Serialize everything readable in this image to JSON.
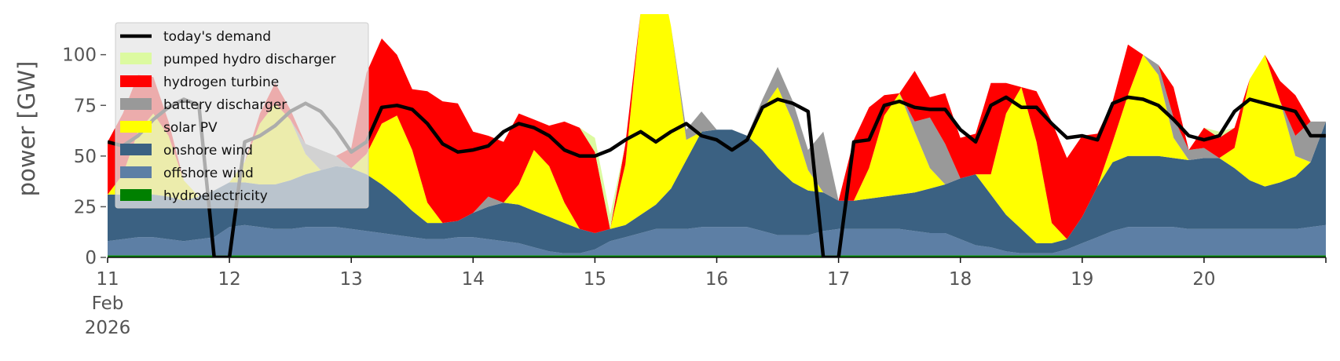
{
  "chart_data": {
    "type": "area",
    "title": "",
    "xlabel": "",
    "ylabel": "power [GW]",
    "x_range": [
      "2026-02-11",
      "2026-02-21"
    ],
    "ylim": [
      0,
      120
    ],
    "yticks": [
      0,
      25,
      50,
      75,
      100
    ],
    "xticks": [
      {
        "date": "2026-02-11",
        "label": "11",
        "sub1": "Feb",
        "sub2": "2026"
      },
      {
        "date": "2026-02-12",
        "label": "12"
      },
      {
        "date": "2026-02-13",
        "label": "13"
      },
      {
        "date": "2026-02-14",
        "label": "14"
      },
      {
        "date": "2026-02-15",
        "label": "15"
      },
      {
        "date": "2026-02-16",
        "label": "16"
      },
      {
        "date": "2026-02-17",
        "label": "17"
      },
      {
        "date": "2026-02-18",
        "label": "18"
      },
      {
        "date": "2026-02-19",
        "label": "19"
      },
      {
        "date": "2026-02-20",
        "label": "20"
      }
    ],
    "grid": false,
    "legend_position": "top-left",
    "x": [
      "2026-02-11 00:00",
      "2026-02-11 03:00",
      "2026-02-11 06:00",
      "2026-02-11 09:00",
      "2026-02-11 12:00",
      "2026-02-11 15:00",
      "2026-02-11 18:00",
      "2026-02-11 21:00",
      "2026-02-12 00:00",
      "2026-02-12 03:00",
      "2026-02-12 06:00",
      "2026-02-12 09:00",
      "2026-02-12 12:00",
      "2026-02-12 15:00",
      "2026-02-12 18:00",
      "2026-02-12 21:00",
      "2026-02-13 00:00",
      "2026-02-13 03:00",
      "2026-02-13 06:00",
      "2026-02-13 09:00",
      "2026-02-13 12:00",
      "2026-02-13 15:00",
      "2026-02-13 18:00",
      "2026-02-13 21:00",
      "2026-02-14 00:00",
      "2026-02-14 03:00",
      "2026-02-14 06:00",
      "2026-02-14 09:00",
      "2026-02-14 12:00",
      "2026-02-14 15:00",
      "2026-02-14 18:00",
      "2026-02-14 21:00",
      "2026-02-15 00:00",
      "2026-02-15 03:00",
      "2026-02-15 06:00",
      "2026-02-15 09:00",
      "2026-02-15 12:00",
      "2026-02-15 15:00",
      "2026-02-15 18:00",
      "2026-02-15 21:00",
      "2026-02-16 00:00",
      "2026-02-16 03:00",
      "2026-02-16 06:00",
      "2026-02-16 09:00",
      "2026-02-16 12:00",
      "2026-02-16 15:00",
      "2026-02-16 18:00",
      "2026-02-16 21:00",
      "2026-02-17 00:00",
      "2026-02-17 03:00",
      "2026-02-17 06:00",
      "2026-02-17 09:00",
      "2026-02-17 12:00",
      "2026-02-17 15:00",
      "2026-02-17 18:00",
      "2026-02-17 21:00",
      "2026-02-18 00:00",
      "2026-02-18 03:00",
      "2026-02-18 06:00",
      "2026-02-18 09:00",
      "2026-02-18 12:00",
      "2026-02-18 15:00",
      "2026-02-18 18:00",
      "2026-02-18 21:00",
      "2026-02-19 00:00",
      "2026-02-19 03:00",
      "2026-02-19 06:00",
      "2026-02-19 09:00",
      "2026-02-19 12:00",
      "2026-02-19 15:00",
      "2026-02-19 18:00",
      "2026-02-19 21:00",
      "2026-02-20 00:00",
      "2026-02-20 03:00",
      "2026-02-20 06:00",
      "2026-02-20 09:00",
      "2026-02-20 12:00",
      "2026-02-20 15:00",
      "2026-02-20 18:00",
      "2026-02-20 21:00",
      "2026-02-21 00:00"
    ],
    "stack_order": [
      "hydroelectricity",
      "offshore wind",
      "onshore wind",
      "solar PV",
      "battery discharger",
      "hydrogen turbine",
      "pumped hydro discharger"
    ],
    "series": [
      {
        "name": "hydroelectricity",
        "color": "#008000",
        "values": [
          1,
          1,
          1,
          1,
          1,
          1,
          1,
          1,
          1,
          1,
          1,
          1,
          1,
          1,
          1,
          1,
          1,
          1,
          1,
          1,
          1,
          1,
          1,
          1,
          1,
          1,
          1,
          1,
          1,
          1,
          1,
          1,
          1,
          1,
          1,
          1,
          1,
          1,
          1,
          1,
          1,
          1,
          1,
          1,
          1,
          1,
          1,
          1,
          1,
          1,
          1,
          1,
          1,
          1,
          1,
          1,
          1,
          1,
          1,
          1,
          1,
          1,
          1,
          1,
          1,
          1,
          1,
          1,
          1,
          1,
          1,
          1,
          1,
          1,
          1,
          1,
          1,
          1,
          1,
          1,
          1
        ]
      },
      {
        "name": "offshore wind",
        "color": "#5d7fa5",
        "values": [
          7,
          8,
          9,
          9,
          8,
          7,
          8,
          9,
          14,
          15,
          14,
          13,
          13,
          14,
          14,
          14,
          13,
          12,
          11,
          10,
          9,
          8,
          8,
          9,
          9,
          8,
          7,
          6,
          4,
          2,
          1,
          1,
          3,
          7,
          9,
          11,
          13,
          13,
          13,
          14,
          14,
          14,
          14,
          12,
          10,
          10,
          10,
          12,
          13,
          13,
          13,
          13,
          13,
          12,
          11,
          11,
          8,
          5,
          4,
          2,
          1,
          1,
          1,
          3,
          6,
          9,
          12,
          14,
          14,
          14,
          14,
          13,
          13,
          13,
          13,
          13,
          13,
          13,
          13,
          14,
          15
        ]
      },
      {
        "name": "onshore wind",
        "color": "#3b6182",
        "values": [
          23,
          22,
          22,
          21,
          21,
          20,
          21,
          23,
          22,
          21,
          21,
          22,
          24,
          26,
          28,
          30,
          30,
          28,
          24,
          19,
          13,
          8,
          8,
          8,
          12,
          16,
          19,
          19,
          18,
          17,
          15,
          12,
          8,
          6,
          6,
          9,
          12,
          20,
          34,
          47,
          48,
          48,
          45,
          40,
          33,
          26,
          22,
          19,
          14,
          14,
          15,
          16,
          17,
          19,
          22,
          24,
          30,
          35,
          26,
          18,
          12,
          5,
          5,
          5,
          13,
          25,
          34,
          35,
          35,
          35,
          34,
          34,
          35,
          35,
          30,
          24,
          21,
          23,
          26,
          32,
          51
        ]
      },
      {
        "name": "solar PV",
        "color": "#ffff00",
        "values": [
          0,
          10,
          30,
          40,
          30,
          10,
          0,
          0,
          0,
          10,
          30,
          40,
          30,
          10,
          0,
          0,
          0,
          10,
          30,
          40,
          30,
          10,
          0,
          0,
          0,
          0,
          0,
          10,
          30,
          25,
          10,
          0,
          0,
          0,
          30,
          100,
          125,
          80,
          10,
          0,
          0,
          0,
          0,
          20,
          40,
          30,
          10,
          0,
          0,
          0,
          15,
          40,
          50,
          30,
          10,
          0,
          0,
          0,
          10,
          50,
          70,
          50,
          10,
          0,
          0,
          0,
          10,
          30,
          50,
          40,
          10,
          0,
          0,
          0,
          10,
          50,
          65,
          40,
          10,
          0,
          0
        ]
      },
      {
        "name": "battery discharger",
        "color": "#999999",
        "values": [
          0,
          0,
          0,
          0,
          0,
          0,
          0,
          0,
          0,
          0,
          0,
          0,
          0,
          5,
          10,
          5,
          0,
          0,
          0,
          0,
          0,
          0,
          0,
          0,
          0,
          5,
          0,
          0,
          0,
          0,
          0,
          0,
          0,
          0,
          0,
          0,
          0,
          0,
          5,
          10,
          0,
          0,
          0,
          5,
          10,
          10,
          10,
          30,
          0,
          0,
          0,
          0,
          0,
          5,
          25,
          20,
          0,
          0,
          0,
          0,
          0,
          0,
          0,
          0,
          0,
          0,
          0,
          0,
          0,
          5,
          10,
          5,
          5,
          0,
          0,
          0,
          0,
          0,
          10,
          20,
          0
        ]
      },
      {
        "name": "hydrogen turbine",
        "color": "#ff0000",
        "values": [
          26,
          30,
          28,
          18,
          7,
          0,
          0,
          0,
          0,
          0,
          5,
          10,
          5,
          0,
          0,
          0,
          10,
          40,
          42,
          30,
          30,
          55,
          60,
          58,
          40,
          30,
          30,
          35,
          15,
          20,
          40,
          50,
          40,
          0,
          10,
          0,
          0,
          0,
          0,
          0,
          0,
          0,
          0,
          0,
          0,
          0,
          0,
          0,
          0,
          30,
          30,
          10,
          0,
          25,
          10,
          25,
          20,
          20,
          45,
          15,
          0,
          25,
          50,
          40,
          40,
          26,
          20,
          25,
          0,
          0,
          15,
          0,
          10,
          10,
          10,
          0,
          0,
          10,
          20,
          0,
          0
        ]
      },
      {
        "name": "pumped hydro discharger",
        "color": "#dcfaa0",
        "values": [
          0,
          0,
          0,
          0,
          0,
          0,
          0,
          0,
          0,
          0,
          0,
          0,
          0,
          0,
          0,
          0,
          0,
          0,
          0,
          0,
          0,
          0,
          0,
          0,
          0,
          0,
          0,
          0,
          0,
          0,
          0,
          0,
          7,
          7,
          0,
          0,
          0,
          0,
          0,
          0,
          0,
          0,
          0,
          0,
          0,
          0,
          0,
          0,
          0,
          0,
          0,
          0,
          0,
          0,
          0,
          0,
          0,
          0,
          0,
          0,
          0,
          0,
          0,
          0,
          0,
          0,
          0,
          0,
          0,
          0,
          0,
          0,
          0,
          3,
          0,
          0,
          0,
          0,
          0,
          0,
          0
        ]
      }
    ],
    "demand": {
      "name": "today's demand",
      "color": "#000000",
      "values": [
        57,
        55,
        60,
        68,
        74,
        78,
        75,
        0,
        0,
        57,
        60,
        65,
        72,
        76,
        72,
        63,
        52,
        57,
        74,
        75,
        73,
        66,
        56,
        52,
        53,
        55,
        62,
        66,
        64,
        60,
        53,
        50,
        50,
        53,
        58,
        62,
        57,
        62,
        66,
        60,
        58,
        53,
        58,
        74,
        78,
        76,
        72,
        0,
        0,
        57,
        58,
        75,
        77,
        74,
        73,
        73,
        63,
        57,
        75,
        79,
        74,
        74,
        66,
        59,
        60,
        58,
        76,
        79,
        78,
        75,
        68,
        60,
        58,
        60,
        72,
        78,
        76,
        74,
        72,
        60,
        60
      ]
    }
  },
  "legend": [
    {
      "label": "today's demand",
      "color": "#000000",
      "kind": "line"
    },
    {
      "label": "pumped hydro discharger",
      "color": "#dcfaa0",
      "kind": "patch"
    },
    {
      "label": "hydrogen turbine",
      "color": "#ff0000",
      "kind": "patch"
    },
    {
      "label": "battery discharger",
      "color": "#999999",
      "kind": "patch"
    },
    {
      "label": "solar PV",
      "color": "#ffff00",
      "kind": "patch"
    },
    {
      "label": "onshore wind",
      "color": "#3b6182",
      "kind": "patch"
    },
    {
      "label": "offshore wind",
      "color": "#5d7fa5",
      "kind": "patch"
    },
    {
      "label": "hydroelectricity",
      "color": "#008000",
      "kind": "patch"
    }
  ]
}
